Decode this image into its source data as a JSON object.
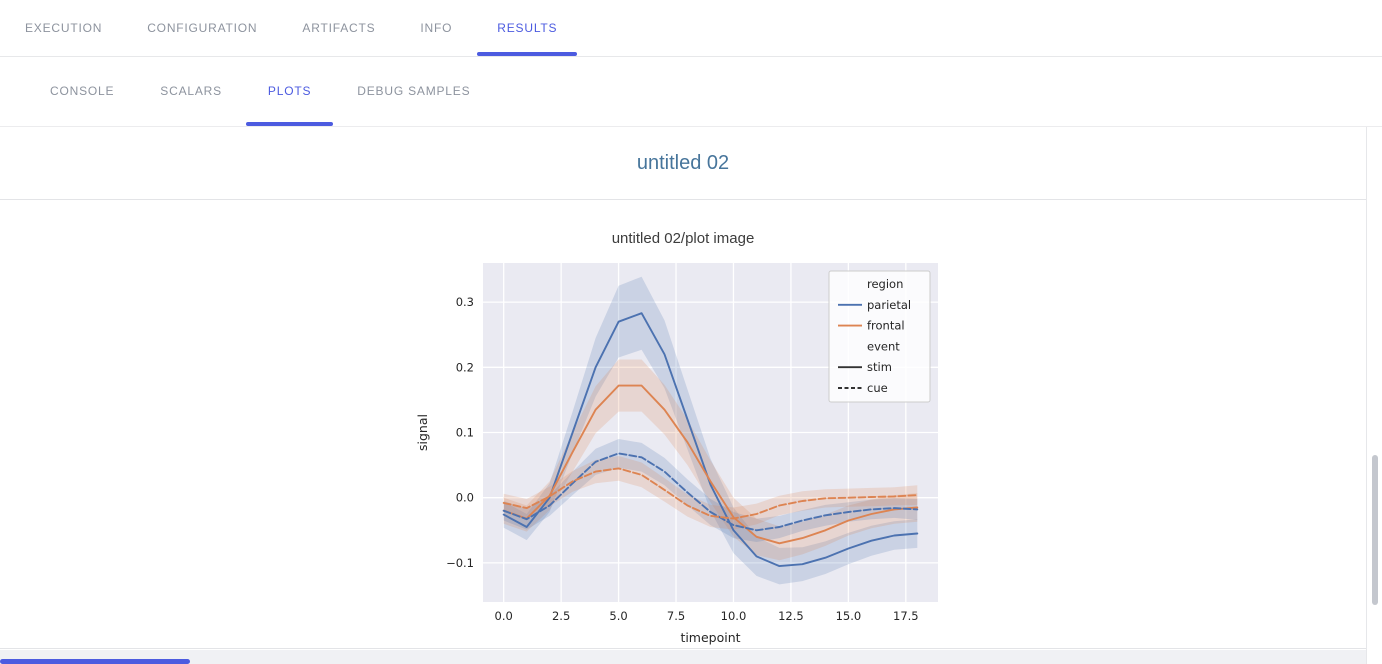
{
  "header": {
    "tabs": [
      {
        "label": "EXECUTION",
        "active": false
      },
      {
        "label": "CONFIGURATION",
        "active": false
      },
      {
        "label": "ARTIFACTS",
        "active": false
      },
      {
        "label": "INFO",
        "active": false
      },
      {
        "label": "RESULTS",
        "active": true
      }
    ]
  },
  "subtabs": {
    "tabs": [
      {
        "label": "CONSOLE",
        "active": false
      },
      {
        "label": "SCALARS",
        "active": false
      },
      {
        "label": "PLOTS",
        "active": true
      },
      {
        "label": "DEBUG SAMPLES",
        "active": false
      }
    ]
  },
  "section": {
    "title": "untitled 02"
  },
  "plot": {
    "title": "untitled 02/plot image"
  },
  "colors": {
    "accent": "#4c5be0",
    "inactive_tab": "#8d939e",
    "section_title": "#47759b",
    "plot_background": "#eaeaf2",
    "parietal": "#4c72b0",
    "frontal": "#dd8452"
  },
  "chart_data": {
    "type": "line",
    "title": "untitled 02/plot image",
    "xlabel": "timepoint",
    "ylabel": "signal",
    "xlim": [
      -0.9,
      18.9
    ],
    "ylim": [
      -0.16,
      0.36
    ],
    "x_ticks": [
      0,
      2.5,
      5,
      7.5,
      10,
      12.5,
      15,
      17.5
    ],
    "y_ticks": [
      -0.1,
      0,
      0.1,
      0.2,
      0.3
    ],
    "grid": true,
    "background": "#eaeaf2",
    "legend_position": "upper right",
    "x": [
      0,
      1,
      2,
      3,
      4,
      5,
      6,
      7,
      8,
      9,
      10,
      11,
      12,
      13,
      14,
      15,
      16,
      17,
      18
    ],
    "series": [
      {
        "name": "parietal-stim",
        "region": "parietal",
        "event": "stim",
        "color": "#4c72b0",
        "dash": "solid",
        "values": [
          -0.026,
          -0.045,
          0.0,
          0.1,
          0.2,
          0.27,
          0.283,
          0.22,
          0.12,
          0.02,
          -0.05,
          -0.09,
          -0.105,
          -0.102,
          -0.092,
          -0.078,
          -0.066,
          -0.058,
          -0.055
        ],
        "ci": [
          0.02,
          0.02,
          0.022,
          0.032,
          0.045,
          0.055,
          0.056,
          0.052,
          0.046,
          0.04,
          0.035,
          0.03,
          0.028,
          0.026,
          0.025,
          0.024,
          0.023,
          0.022,
          0.022
        ]
      },
      {
        "name": "frontal-stim",
        "region": "frontal",
        "event": "stim",
        "color": "#dd8452",
        "dash": "solid",
        "values": [
          -0.02,
          -0.032,
          0.003,
          0.07,
          0.135,
          0.172,
          0.172,
          0.135,
          0.085,
          0.025,
          -0.03,
          -0.06,
          -0.07,
          -0.062,
          -0.05,
          -0.035,
          -0.025,
          -0.018,
          -0.015
        ],
        "ci": [
          0.02,
          0.02,
          0.022,
          0.03,
          0.036,
          0.04,
          0.04,
          0.038,
          0.035,
          0.032,
          0.03,
          0.028,
          0.026,
          0.025,
          0.024,
          0.023,
          0.022,
          0.022,
          0.022
        ]
      },
      {
        "name": "parietal-cue",
        "region": "parietal",
        "event": "cue",
        "color": "#4c72b0",
        "dash": "dashed",
        "values": [
          -0.02,
          -0.033,
          -0.012,
          0.022,
          0.055,
          0.068,
          0.062,
          0.04,
          0.008,
          -0.022,
          -0.042,
          -0.05,
          -0.045,
          -0.035,
          -0.027,
          -0.022,
          -0.018,
          -0.016,
          -0.018
        ],
        "ci": [
          0.015,
          0.016,
          0.016,
          0.018,
          0.02,
          0.022,
          0.022,
          0.021,
          0.02,
          0.02,
          0.02,
          0.018,
          0.017,
          0.016,
          0.016,
          0.015,
          0.015,
          0.015,
          0.016
        ]
      },
      {
        "name": "frontal-cue",
        "region": "frontal",
        "event": "cue",
        "color": "#dd8452",
        "dash": "dashed",
        "values": [
          -0.008,
          -0.016,
          0.002,
          0.025,
          0.04,
          0.045,
          0.035,
          0.012,
          -0.012,
          -0.028,
          -0.032,
          -0.025,
          -0.012,
          -0.005,
          -0.001,
          0.0,
          0.001,
          0.002,
          0.004
        ],
        "ci": [
          0.014,
          0.014,
          0.015,
          0.016,
          0.018,
          0.019,
          0.019,
          0.018,
          0.017,
          0.017,
          0.017,
          0.016,
          0.015,
          0.015,
          0.014,
          0.014,
          0.014,
          0.014,
          0.015
        ]
      }
    ],
    "legend": {
      "entries": [
        {
          "type": "title",
          "label": "region"
        },
        {
          "type": "line",
          "label": "parietal",
          "color": "#4c72b0",
          "dash": "solid"
        },
        {
          "type": "line",
          "label": "frontal",
          "color": "#dd8452",
          "dash": "solid"
        },
        {
          "type": "title",
          "label": "event"
        },
        {
          "type": "line",
          "label": "stim",
          "color": "#333333",
          "dash": "solid"
        },
        {
          "type": "line",
          "label": "cue",
          "color": "#333333",
          "dash": "dashed"
        }
      ]
    }
  }
}
